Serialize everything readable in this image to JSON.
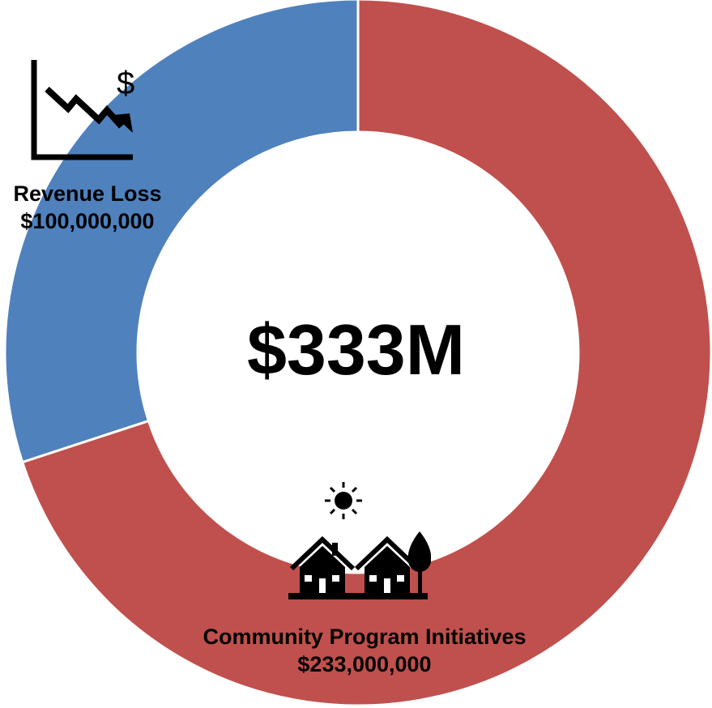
{
  "center_label": "$333M",
  "colors": {
    "revenue_loss": "#4F81BD",
    "community": "#C0504D",
    "separator": "#ffffff",
    "icon": "#000000"
  },
  "icons": {
    "revenue_loss": "declining-chart-dollar-icon",
    "community": "houses-sun-tree-icon"
  },
  "chart_data": {
    "type": "pie",
    "donut": true,
    "title": "",
    "total_label": "$333M",
    "slices": [
      {
        "name": "Revenue Loss",
        "value": 100000000,
        "value_label": "$100,000,000",
        "color": "#4F81BD"
      },
      {
        "name": "Community Program Initiatives",
        "value": 233000000,
        "value_label": "$233,000,000",
        "color": "#C0504D"
      }
    ]
  }
}
